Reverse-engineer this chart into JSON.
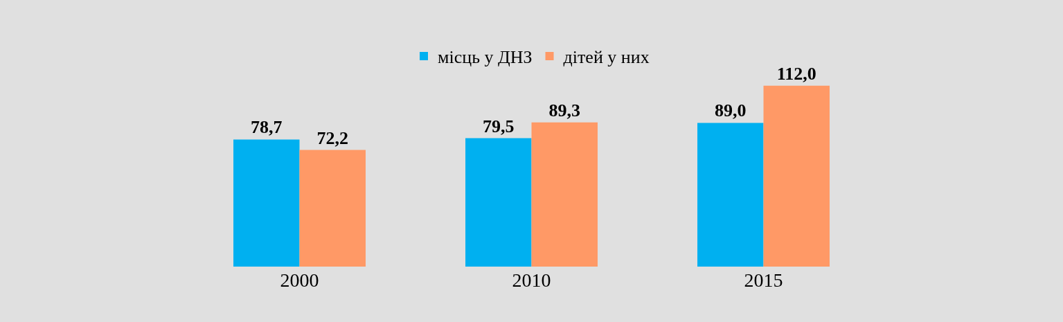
{
  "chart_data": {
    "type": "bar",
    "categories": [
      "2000",
      "2010",
      "2015"
    ],
    "series": [
      {
        "name": "місць у ДНЗ",
        "color": "#00b0f0",
        "values": [
          78.7,
          79.5,
          89.0
        ],
        "value_labels": [
          "78,7",
          "79,5",
          "89,0"
        ]
      },
      {
        "name": "дітей у них",
        "color": "#ff9966",
        "values": [
          72.2,
          89.3,
          112.0
        ],
        "value_labels": [
          "72,2",
          "89,3",
          "112,0"
        ]
      }
    ],
    "legend": "top",
    "grid": false,
    "tick_labels": "x"
  }
}
